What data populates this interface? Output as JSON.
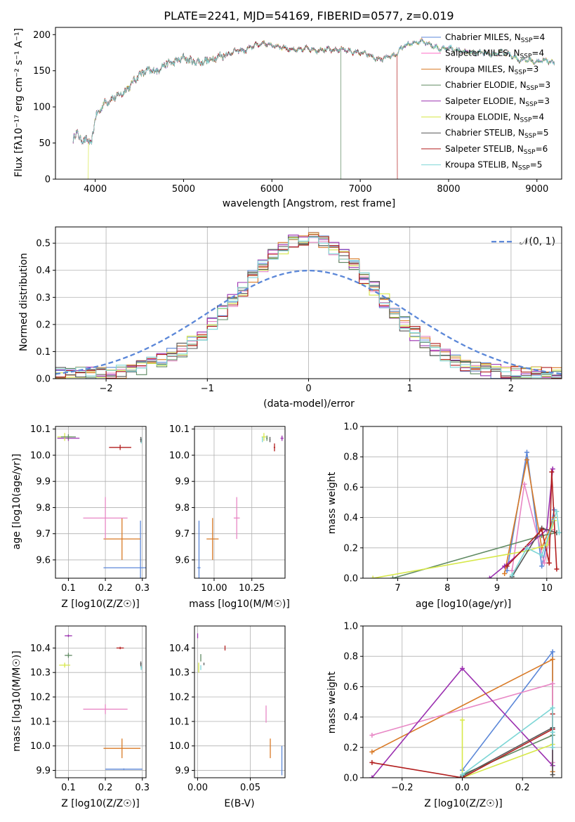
{
  "chart_data": [
    {
      "type": "line",
      "title": "PLATE=2241, MJD=54169, FIBERID=0577, z=0.019",
      "xlabel": "wavelength [Angstrom, rest frame]",
      "ylabel": "Flux [fλ10⁻¹⁷ erg cm⁻² s⁻¹ A⁻¹]",
      "xlim": [
        3550,
        9280
      ],
      "ylim": [
        0,
        210
      ],
      "xticks": [
        4000,
        5000,
        6000,
        7000,
        8000,
        9000
      ],
      "yticks": [
        0,
        50,
        100,
        150,
        200
      ],
      "continuum": {
        "x": [
          3750,
          3800,
          3860,
          3900,
          3950,
          4000,
          4100,
          4200,
          4300,
          4400,
          4500,
          4600,
          4700,
          4800,
          4900,
          5000,
          5100,
          5200,
          5300,
          5400,
          5500,
          5600,
          5700,
          5800,
          5900,
          6000,
          6100,
          6200,
          6300,
          6400,
          6500,
          6600,
          6700,
          6800,
          6900,
          7000,
          7100,
          7200,
          7300,
          7400,
          7500,
          7600,
          7700,
          7800,
          7900,
          8000,
          8100,
          8200,
          8300,
          8400,
          8500,
          8600,
          8700,
          8800,
          8900,
          9000,
          9100,
          9200
        ],
        "y": [
          55,
          65,
          50,
          58,
          45,
          85,
          105,
          112,
          118,
          130,
          145,
          150,
          150,
          160,
          162,
          168,
          163,
          162,
          165,
          170,
          173,
          178,
          178,
          185,
          188,
          185,
          183,
          180,
          178,
          182,
          178,
          180,
          178,
          180,
          176,
          175,
          172,
          165,
          168,
          172,
          185,
          188,
          192,
          186,
          180,
          182,
          178,
          176,
          175,
          175,
          172,
          176,
          172,
          165,
          165,
          162,
          165,
          160
        ]
      },
      "series": [
        {
          "name": "Chabrier MILES, N_SSP=4",
          "color": "#5b87d8"
        },
        {
          "name": "Salpeter MILES, N_SSP=4",
          "color": "#ff6ec7"
        },
        {
          "name": "Kroupa MILES, N_SSP=3",
          "color": "#d97a26"
        },
        {
          "name": "Chabrier ELODIE, N_SSP=3",
          "color": "#5f8a62"
        },
        {
          "name": "Salpeter ELODIE, N_SSP=3",
          "color": "#9b30b0"
        },
        {
          "name": "Kroupa ELODIE, N_SSP=4",
          "color": "#d7e84a"
        },
        {
          "name": "Chabrier STELIB, N_SSP=5",
          "color": "#555555"
        },
        {
          "name": "Salpeter STELIB, N_SSP=6",
          "color": "#b21e1e"
        },
        {
          "name": "Kroupa STELIB, N_SSP=5",
          "color": "#7ed6d6"
        }
      ]
    },
    {
      "type": "histogram",
      "xlabel": "(data-model)/error",
      "ylabel": "Normed distribution",
      "xlim": [
        -2.5,
        2.5
      ],
      "ylim": [
        0,
        0.56
      ],
      "xticks": [
        -2,
        -1,
        0,
        1,
        2
      ],
      "yticks": [
        0.0,
        0.1,
        0.2,
        0.3,
        0.4,
        0.5
      ],
      "bin_width": 0.1,
      "legend": "𝒩(0, 1)",
      "reference_curve": "N(0,1)",
      "reference_color": "#5b87d8"
    },
    {
      "type": "scatter",
      "xlabel": "Z [log10(Z/Z☉)]",
      "ylabel": "age [log10(age/yr)]",
      "xlim": [
        0.065,
        0.31
      ],
      "ylim": [
        9.53,
        10.11
      ],
      "xticks": [
        0.1,
        0.2,
        0.3
      ],
      "yticks": [
        9.6,
        9.7,
        9.8,
        9.9,
        10.0,
        10.1
      ],
      "points": [
        {
          "color": "#5b87d8",
          "x": 0.295,
          "y": 9.57,
          "xerr": 0.1,
          "yerr": 0.18
        },
        {
          "color": "#d97a26",
          "x": 0.245,
          "y": 9.68,
          "xerr": 0.05,
          "yerr": 0.08
        },
        {
          "color": "#e887c5",
          "x": 0.2,
          "y": 9.76,
          "xerr": 0.06,
          "yerr": 0.08
        },
        {
          "color": "#b21e1e",
          "x": 0.24,
          "y": 10.03,
          "xerr": 0.03,
          "yerr": 0.01
        },
        {
          "color": "#9b30b0",
          "x": 0.1,
          "y": 10.065,
          "xerr": 0.03,
          "yerr": 0.01
        },
        {
          "color": "#d7e84a",
          "x": 0.09,
          "y": 10.07,
          "xerr": 0.02,
          "yerr": 0.015
        },
        {
          "color": "#5f8a62",
          "x": 0.1,
          "y": 10.07,
          "xerr": 0.02,
          "yerr": 0.01
        },
        {
          "color": "#7ed6d6",
          "x": 0.297,
          "y": 10.055,
          "xerr": 0.002,
          "yerr": 0.01
        },
        {
          "color": "#555555",
          "x": 0.296,
          "y": 10.06,
          "xerr": 0.002,
          "yerr": 0.01
        }
      ]
    },
    {
      "type": "scatter",
      "xlabel": "mass [log10(M/M☉)]",
      "ylabel": "",
      "xlim": [
        9.87,
        10.47
      ],
      "ylim": [
        9.53,
        10.11
      ],
      "xticks": [
        10.0,
        10.25
      ],
      "yticks": [
        9.6,
        9.7,
        9.8,
        9.9,
        10.0,
        10.1
      ],
      "points": [
        {
          "color": "#5b87d8",
          "x": 9.9,
          "y": 9.57,
          "xerr": 0.01,
          "yerr": 0.18
        },
        {
          "color": "#d97a26",
          "x": 9.99,
          "y": 9.68,
          "xerr": 0.04,
          "yerr": 0.08
        },
        {
          "color": "#e887c5",
          "x": 10.15,
          "y": 9.76,
          "xerr": 0.02,
          "yerr": 0.08
        },
        {
          "color": "#b21e1e",
          "x": 10.4,
          "y": 10.03,
          "xerr": 0.005,
          "yerr": 0.015
        },
        {
          "color": "#9b30b0",
          "x": 10.45,
          "y": 10.065,
          "xerr": 0.01,
          "yerr": 0.01
        },
        {
          "color": "#d7e84a",
          "x": 10.33,
          "y": 10.07,
          "xerr": 0.015,
          "yerr": 0.015
        },
        {
          "color": "#5f8a62",
          "x": 10.35,
          "y": 10.065,
          "xerr": 0.005,
          "yerr": 0.01
        },
        {
          "color": "#7ed6d6",
          "x": 10.32,
          "y": 10.06,
          "xerr": 0.003,
          "yerr": 0.01
        },
        {
          "color": "#555555",
          "x": 10.37,
          "y": 10.06,
          "xerr": 0.003,
          "yerr": 0.01
        }
      ]
    },
    {
      "type": "line",
      "xlabel": "age [log10(age/yr)]",
      "ylabel": "mass weight",
      "xlim": [
        6.3,
        10.3
      ],
      "ylim": [
        0.0,
        1.0
      ],
      "xticks": [
        7,
        8,
        9,
        10
      ],
      "yticks": [
        0.0,
        0.2,
        0.4,
        0.6,
        0.8,
        1.0
      ],
      "series": [
        {
          "color": "#5b87d8",
          "x": [
            9.2,
            9.6,
            9.9,
            10.15
          ],
          "y": [
            0.05,
            0.83,
            0.08,
            0.45
          ]
        },
        {
          "color": "#d97a26",
          "x": [
            9.15,
            9.6,
            9.9,
            10.15
          ],
          "y": [
            0.03,
            0.78,
            0.2,
            0.4
          ]
        },
        {
          "color": "#e887c5",
          "x": [
            9.3,
            9.55,
            9.95,
            10.1
          ],
          "y": [
            0.05,
            0.62,
            0.1,
            0.32
          ]
        },
        {
          "color": "#5f8a62",
          "x": [
            6.9,
            9.9,
            10.2
          ],
          "y": [
            0.0,
            0.28,
            0.3
          ]
        },
        {
          "color": "#9b30b0",
          "x": [
            8.85,
            9.15,
            10.0,
            10.12
          ],
          "y": [
            0.0,
            0.08,
            0.32,
            0.72
          ]
        },
        {
          "color": "#d7e84a",
          "x": [
            6.5,
            9.6,
            10.0,
            10.15
          ],
          "y": [
            0.0,
            0.18,
            0.22,
            0.38
          ]
        },
        {
          "color": "#555555",
          "x": [
            9.3,
            9.9,
            10.2
          ],
          "y": [
            0.01,
            0.33,
            0.3
          ]
        },
        {
          "color": "#b21e1e",
          "x": [
            9.2,
            9.9,
            10.05,
            10.1,
            10.2
          ],
          "y": [
            0.08,
            0.32,
            0.1,
            0.7,
            0.06
          ]
        },
        {
          "color": "#7ed6d6",
          "x": [
            9.3,
            9.6,
            9.9,
            10.2,
            10.25
          ],
          "y": [
            0.02,
            0.2,
            0.15,
            0.44,
            0.3
          ]
        }
      ]
    },
    {
      "type": "scatter",
      "xlabel": "Z [log10(Z/Z☉)]",
      "ylabel": "mass [log10(M/M☉)]",
      "xlim": [
        0.065,
        0.31
      ],
      "ylim": [
        9.87,
        10.49
      ],
      "xticks": [
        0.1,
        0.2,
        0.3
      ],
      "yticks": [
        9.9,
        10.0,
        10.1,
        10.2,
        10.3,
        10.4
      ],
      "points": [
        {
          "color": "#5b87d8",
          "x": 0.25,
          "y": 9.905,
          "xerr": 0.05,
          "yerr": 0.003
        },
        {
          "color": "#d97a26",
          "x": 0.245,
          "y": 9.99,
          "xerr": 0.05,
          "yerr": 0.04
        },
        {
          "color": "#e887c5",
          "x": 0.2,
          "y": 10.15,
          "xerr": 0.06,
          "yerr": 0.02
        },
        {
          "color": "#b21e1e",
          "x": 0.24,
          "y": 10.4,
          "xerr": 0.01,
          "yerr": 0.005
        },
        {
          "color": "#9b30b0",
          "x": 0.1,
          "y": 10.45,
          "xerr": 0.01,
          "yerr": 0.005
        },
        {
          "color": "#d7e84a",
          "x": 0.09,
          "y": 10.33,
          "xerr": 0.015,
          "yerr": 0.01
        },
        {
          "color": "#5f8a62",
          "x": 0.1,
          "y": 10.37,
          "xerr": 0.01,
          "yerr": 0.01
        },
        {
          "color": "#7ed6d6",
          "x": 0.297,
          "y": 10.32,
          "xerr": 0.002,
          "yerr": 0.01
        },
        {
          "color": "#555555",
          "x": 0.296,
          "y": 10.335,
          "xerr": 0.002,
          "yerr": 0.01
        }
      ]
    },
    {
      "type": "scatter",
      "xlabel": "E(B-V)",
      "ylabel": "",
      "xlim": [
        -0.003,
        0.083
      ],
      "ylim": [
        9.87,
        10.49
      ],
      "xticks": [
        0.0,
        0.05
      ],
      "yticks": [
        9.9,
        10.0,
        10.1,
        10.2,
        10.3,
        10.4
      ],
      "points": [
        {
          "color": "#5b87d8",
          "x": 0.08,
          "y": 9.94,
          "xerr": 0.0,
          "yerr": 0.06
        },
        {
          "color": "#d97a26",
          "x": 0.069,
          "y": 9.99,
          "xerr": 0.0,
          "yerr": 0.04
        },
        {
          "color": "#e887c5",
          "x": 0.065,
          "y": 10.13,
          "xerr": 0.0,
          "yerr": 0.035
        },
        {
          "color": "#b21e1e",
          "x": 0.026,
          "y": 10.4,
          "xerr": 0.0,
          "yerr": 0.01
        },
        {
          "color": "#9b30b0",
          "x": 0.0,
          "y": 10.45,
          "xerr": 0.0,
          "yerr": 0.01
        },
        {
          "color": "#d7e84a",
          "x": 0.001,
          "y": 10.32,
          "xerr": 0.0,
          "yerr": 0.02
        },
        {
          "color": "#5f8a62",
          "x": 0.003,
          "y": 10.36,
          "xerr": 0.0,
          "yerr": 0.015
        },
        {
          "color": "#7ed6d6",
          "x": 0.003,
          "y": 10.32,
          "xerr": 0.0,
          "yerr": 0.01
        },
        {
          "color": "#555555",
          "x": 0.006,
          "y": 10.335,
          "xerr": 0.0,
          "yerr": 0.005
        }
      ]
    },
    {
      "type": "line",
      "xlabel": "Z [log10(Z/Z☉)]",
      "ylabel": "mass weight",
      "xlim": [
        -0.33,
        0.33
      ],
      "ylim": [
        0.0,
        1.0
      ],
      "xticks": [
        -0.2,
        0.0,
        0.2
      ],
      "yticks": [
        0.0,
        0.2,
        0.4,
        0.6,
        0.8,
        1.0
      ],
      "series": [
        {
          "color": "#5b87d8",
          "x": [
            0.0,
            0.3,
            0.3
          ],
          "y": [
            0.05,
            0.83,
            0.08
          ]
        },
        {
          "color": "#d97a26",
          "x": [
            -0.3,
            0.3,
            0.3
          ],
          "y": [
            0.17,
            0.78,
            0.04
          ]
        },
        {
          "color": "#e887c5",
          "x": [
            -0.3,
            0.3,
            0.3
          ],
          "y": [
            0.28,
            0.62,
            0.1
          ]
        },
        {
          "color": "#5f8a62",
          "x": [
            0.0,
            0.3
          ],
          "y": [
            0.02,
            0.28
          ]
        },
        {
          "color": "#9b30b0",
          "x": [
            -0.3,
            0.0,
            0.3,
            0.3
          ],
          "y": [
            0.0,
            0.72,
            0.08,
            0.32
          ]
        },
        {
          "color": "#d7e84a",
          "x": [
            0.0,
            0.0,
            0.3
          ],
          "y": [
            0.38,
            0.0,
            0.22
          ]
        },
        {
          "color": "#555555",
          "x": [
            0.0,
            0.3,
            0.3
          ],
          "y": [
            0.01,
            0.33,
            0.02
          ]
        },
        {
          "color": "#b21e1e",
          "x": [
            -0.3,
            0.0,
            0.3,
            0.3
          ],
          "y": [
            0.1,
            0.0,
            0.32,
            0.42
          ]
        },
        {
          "color": "#7ed6d6",
          "x": [
            0.0,
            0.3,
            0.3,
            0.3
          ],
          "y": [
            0.02,
            0.46,
            0.2,
            0.3
          ]
        }
      ]
    }
  ]
}
